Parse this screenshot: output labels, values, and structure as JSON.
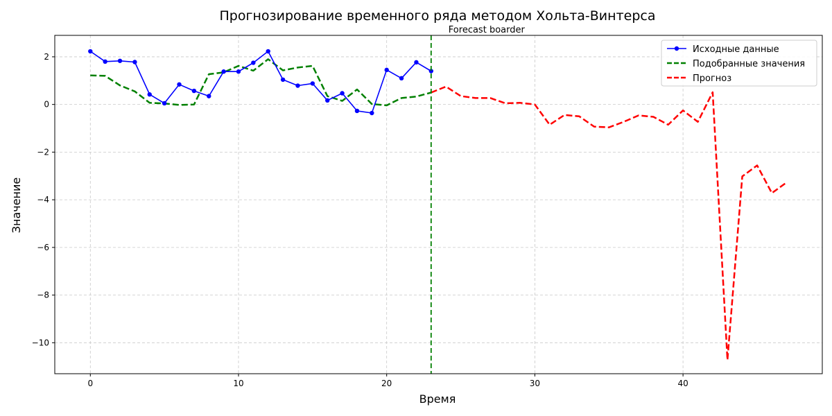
{
  "chart_data": {
    "type": "line",
    "title": "Прогнозирование временного ряда методом Хольта-Винтерса",
    "xlabel": "Время",
    "ylabel": "Значение",
    "xlim": [
      -2.4,
      49.4
    ],
    "ylim": [
      -11.3,
      2.9
    ],
    "xticks": [
      0,
      10,
      20,
      30,
      40
    ],
    "yticks": [
      -10,
      -8,
      -6,
      -4,
      -2,
      0,
      2
    ],
    "grid": true,
    "legend_position": "top-right",
    "annotation": {
      "text": "Forecast boarder",
      "x": 23
    },
    "series": [
      {
        "name": "Исходные данные",
        "color": "#0000ff",
        "style": "solid",
        "marker": "circle",
        "x": [
          0,
          1,
          2,
          3,
          4,
          5,
          6,
          7,
          8,
          9,
          10,
          11,
          12,
          13,
          14,
          15,
          16,
          17,
          18,
          19,
          20,
          21,
          22,
          23
        ],
        "values": [
          2.23,
          1.8,
          1.83,
          1.78,
          0.42,
          0.05,
          0.84,
          0.57,
          0.35,
          1.38,
          1.38,
          1.75,
          2.23,
          1.04,
          0.79,
          0.88,
          0.17,
          0.47,
          -0.27,
          -0.36,
          1.45,
          1.1,
          1.77,
          1.4
        ]
      },
      {
        "name": "Подобранные значения",
        "color": "#008000",
        "style": "dashed",
        "marker": "none",
        "x": [
          0,
          1,
          2,
          3,
          4,
          5,
          6,
          7,
          8,
          9,
          10,
          11,
          12,
          13,
          14,
          15,
          16,
          17,
          18,
          19,
          20,
          21,
          22,
          23
        ],
        "values": [
          1.22,
          1.2,
          0.8,
          0.55,
          0.07,
          0.04,
          -0.02,
          0.0,
          1.27,
          1.35,
          1.62,
          1.42,
          1.9,
          1.43,
          1.55,
          1.62,
          0.35,
          0.15,
          0.63,
          0.02,
          -0.04,
          0.27,
          0.33,
          0.5
        ]
      },
      {
        "name": "Прогноз",
        "color": "#ff0000",
        "style": "dashed",
        "marker": "none",
        "x": [
          23,
          24,
          25,
          26,
          27,
          28,
          29,
          30,
          31,
          32,
          33,
          34,
          35,
          36,
          37,
          38,
          39,
          40,
          41,
          42,
          43,
          44,
          45,
          46,
          47
        ],
        "values": [
          0.5,
          0.75,
          0.35,
          0.27,
          0.27,
          0.05,
          0.07,
          0.0,
          -0.85,
          -0.44,
          -0.5,
          -0.93,
          -0.96,
          -0.73,
          -0.46,
          -0.52,
          -0.85,
          -0.25,
          -0.73,
          0.51,
          -10.72,
          -3.02,
          -2.56,
          -3.72,
          -3.27
        ]
      }
    ],
    "vline": {
      "x": 23,
      "color": "#008000",
      "style": "dashed"
    }
  }
}
